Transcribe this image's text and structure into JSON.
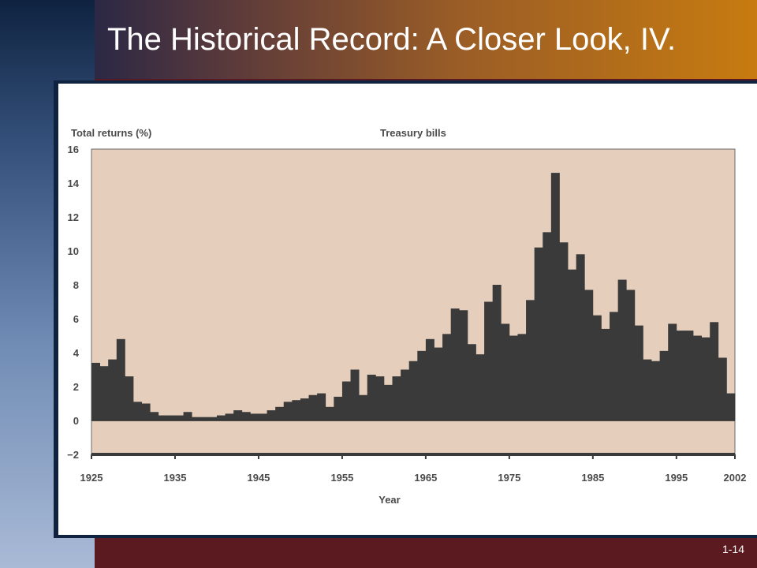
{
  "slide": {
    "title": "The Historical Record: A Closer Look, IV.",
    "number": "1-14"
  },
  "colors": {
    "plot_background": "#e5cfbc",
    "bars": "#3a3a3a",
    "title_text": "#ffffff"
  },
  "chart_data": {
    "type": "bar",
    "title": "Treasury bills",
    "ylabel": "Total returns (%)",
    "xlabel": "Year",
    "ylim": [
      -2,
      16
    ],
    "xlim": [
      1925,
      2002
    ],
    "y_ticks": [
      "16",
      "14",
      "12",
      "10",
      "8",
      "6",
      "4",
      "2",
      "0",
      "−2"
    ],
    "x_ticks": [
      "1925",
      "1935",
      "1945",
      "1955",
      "1965",
      "1975",
      "1985",
      "1995",
      "2002"
    ],
    "grid": false,
    "x": [
      1926,
      1927,
      1928,
      1929,
      1930,
      1931,
      1932,
      1933,
      1934,
      1935,
      1936,
      1937,
      1938,
      1939,
      1940,
      1941,
      1942,
      1943,
      1944,
      1945,
      1946,
      1947,
      1948,
      1949,
      1950,
      1951,
      1952,
      1953,
      1954,
      1955,
      1956,
      1957,
      1958,
      1959,
      1960,
      1961,
      1962,
      1963,
      1964,
      1965,
      1966,
      1967,
      1968,
      1969,
      1970,
      1971,
      1972,
      1973,
      1974,
      1975,
      1976,
      1977,
      1978,
      1979,
      1980,
      1981,
      1982,
      1983,
      1984,
      1985,
      1986,
      1987,
      1988,
      1989,
      1990,
      1991,
      1992,
      1993,
      1994,
      1995,
      1996,
      1997,
      1998,
      1999,
      2000,
      2001,
      2002
    ],
    "values": [
      3.4,
      3.2,
      3.6,
      4.8,
      2.6,
      1.1,
      1.0,
      0.5,
      0.3,
      0.3,
      0.3,
      0.5,
      0.2,
      0.2,
      0.2,
      0.3,
      0.4,
      0.6,
      0.5,
      0.4,
      0.4,
      0.6,
      0.8,
      1.1,
      1.2,
      1.3,
      1.5,
      1.6,
      0.8,
      1.4,
      2.3,
      3.0,
      1.5,
      2.7,
      2.6,
      2.1,
      2.6,
      3.0,
      3.5,
      4.1,
      4.8,
      4.3,
      5.1,
      6.6,
      6.5,
      4.5,
      3.9,
      7.0,
      8.0,
      5.7,
      5.0,
      5.1,
      7.1,
      10.2,
      11.1,
      14.6,
      10.5,
      8.9,
      9.8,
      7.7,
      6.2,
      5.4,
      6.4,
      8.3,
      7.7,
      5.6,
      3.6,
      3.5,
      4.1,
      5.7,
      5.3,
      5.3,
      5.0,
      4.9,
      5.8,
      3.7,
      1.6
    ]
  }
}
